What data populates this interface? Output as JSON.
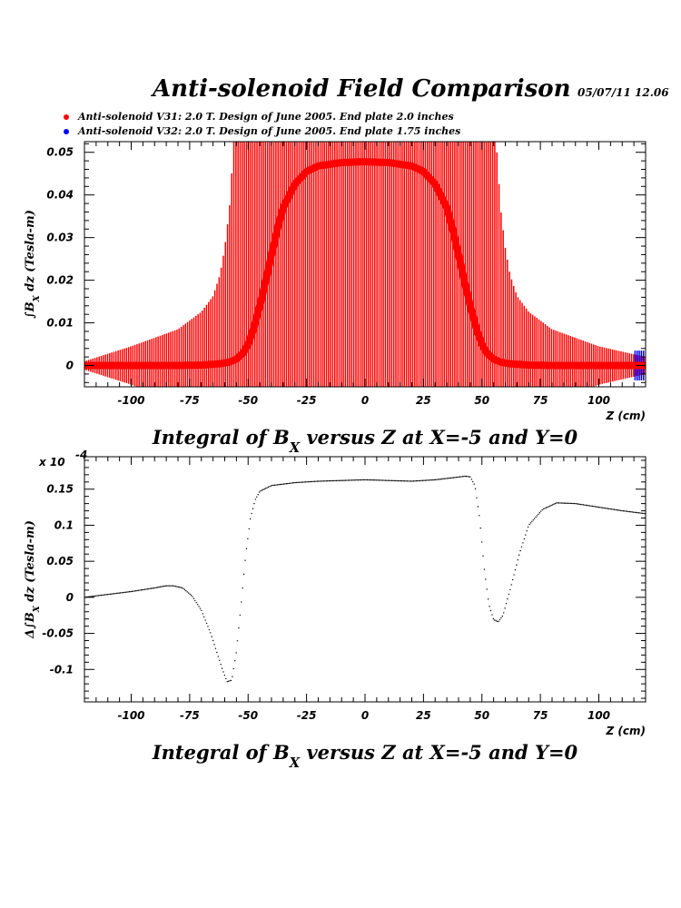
{
  "page": {
    "title": "Anti-solenoid Field Comparison",
    "date": "05/07/11   12.06"
  },
  "colors": {
    "series_v31": "#ff0000",
    "series_v32": "#0000ff",
    "diff": "#000000",
    "axis": "#000000"
  },
  "legend": [
    {
      "label": "Anti-solenoid V31: 2.0 T. Design of June 2005. End plate 2.0 inches",
      "color": "#ff0000"
    },
    {
      "label": "Anti-solenoid V32: 2.0 T. Design of June 2005. End plate 1.75 inches",
      "color": "#0000ff"
    }
  ],
  "chart_data": [
    {
      "type": "line",
      "xlabel": "Z (cm)",
      "ylabel_parts": [
        "∫B",
        "X",
        " dz  (Tesla-m)"
      ],
      "caption_parts": [
        "Integral of B",
        "X",
        " versus Z at X=-5 and Y=0"
      ],
      "xlim": [
        -120,
        120
      ],
      "ylim": [
        -0.005,
        0.0525
      ],
      "xticks": [
        -100,
        -75,
        -50,
        -25,
        0,
        25,
        50,
        75,
        100
      ],
      "xtick_labels": [
        "-100",
        "-75",
        "-50",
        "-25",
        "0",
        "25",
        "50",
        "75",
        "100"
      ],
      "yticks": [
        0,
        0.01,
        0.02,
        0.03,
        0.04,
        0.05
      ],
      "ytick_labels": [
        "0",
        "0.01",
        "0.02",
        "0.03",
        "0.04",
        "0.05"
      ],
      "grid": false,
      "series": [
        {
          "name": "Anti-solenoid V31: 2.0 T. Design of June 2005. End plate 2.0 inches",
          "color": "#ff0000",
          "x": [
            -120,
            -100,
            -80,
            -70,
            -62,
            -58,
            -55,
            -52,
            -50,
            -48,
            -45,
            -42,
            -40,
            -37,
            -35,
            -30,
            -25,
            -20,
            -10,
            0,
            10,
            20,
            25,
            30,
            35,
            37,
            40,
            42,
            45,
            48,
            50,
            52,
            55,
            58,
            62,
            70,
            80,
            100,
            120
          ],
          "y": [
            0,
            0,
            0,
            0.0001,
            0.0004,
            0.0008,
            0.0015,
            0.003,
            0.005,
            0.008,
            0.014,
            0.021,
            0.026,
            0.033,
            0.037,
            0.0425,
            0.0455,
            0.0468,
            0.0476,
            0.0478,
            0.0476,
            0.0468,
            0.0455,
            0.0425,
            0.037,
            0.033,
            0.026,
            0.021,
            0.014,
            0.008,
            0.005,
            0.003,
            0.0015,
            0.0008,
            0.0004,
            0.0001,
            0,
            0,
            0
          ]
        },
        {
          "name": "Anti-solenoid V32: 2.0 T. Design of June 2005. End plate 1.75 inches",
          "color": "#0000ff",
          "x": [
            117,
            118,
            119,
            120
          ],
          "y": [
            0,
            0,
            0,
            0
          ]
        }
      ],
      "error_band_halfwidth": {
        "x": [
          -120,
          -100,
          -80,
          -70,
          -65,
          -62,
          -60,
          -58,
          -55,
          55,
          58,
          60,
          62,
          65,
          70,
          80,
          100,
          120
        ],
        "y": [
          0.001,
          0.0045,
          0.0085,
          0.0125,
          0.016,
          0.021,
          0.027,
          0.036,
          0.06,
          0.06,
          0.036,
          0.027,
          0.021,
          0.016,
          0.0125,
          0.0085,
          0.0045,
          0.002
        ]
      }
    },
    {
      "type": "scatter",
      "xlabel": "Z (cm)",
      "ylabel_parts": [
        "Δ∫B",
        "X",
        " dz  (Tesla-m)"
      ],
      "caption_parts": [
        "Integral of B",
        "X",
        " versus Z at X=-5 and Y=0"
      ],
      "yscale_label": "x 10",
      "yscale_exp": "-4",
      "xlim": [
        -120,
        120
      ],
      "ylim": [
        -0.145,
        0.195
      ],
      "xticks": [
        -100,
        -75,
        -50,
        -25,
        0,
        25,
        50,
        75,
        100
      ],
      "xtick_labels": [
        "-100",
        "-75",
        "-50",
        "-25",
        "0",
        "25",
        "50",
        "75",
        "100"
      ],
      "yticks": [
        -0.1,
        -0.05,
        0,
        0.05,
        0.1,
        0.15
      ],
      "ytick_labels": [
        "-0.1",
        "-0.05",
        "0",
        "0.05",
        "0.1",
        "0.15"
      ],
      "grid": false,
      "series": [
        {
          "color": "#000000",
          "x": [
            -120,
            -110,
            -100,
            -90,
            -85,
            -82,
            -78,
            -74,
            -70,
            -66,
            -63,
            -61,
            -59,
            -57,
            -55,
            -53,
            -51,
            -49,
            -47,
            -45,
            -40,
            -30,
            -20,
            -10,
            0,
            10,
            20,
            30,
            38,
            43,
            45,
            47,
            49,
            51,
            53,
            55,
            57,
            59,
            62,
            66,
            70,
            76,
            82,
            90,
            100,
            110,
            120
          ],
          "y": [
            0,
            0.004,
            0.008,
            0.013,
            0.016,
            0.016,
            0.013,
            0.002,
            -0.018,
            -0.05,
            -0.08,
            -0.1,
            -0.117,
            -0.115,
            -0.075,
            -0.01,
            0.06,
            0.11,
            0.135,
            0.147,
            0.155,
            0.159,
            0.161,
            0.162,
            0.163,
            0.162,
            0.161,
            0.163,
            0.166,
            0.168,
            0.167,
            0.155,
            0.11,
            0.04,
            -0.01,
            -0.031,
            -0.034,
            -0.025,
            0.01,
            0.06,
            0.1,
            0.122,
            0.131,
            0.13,
            0.125,
            0.12,
            0.116
          ]
        }
      ]
    }
  ]
}
